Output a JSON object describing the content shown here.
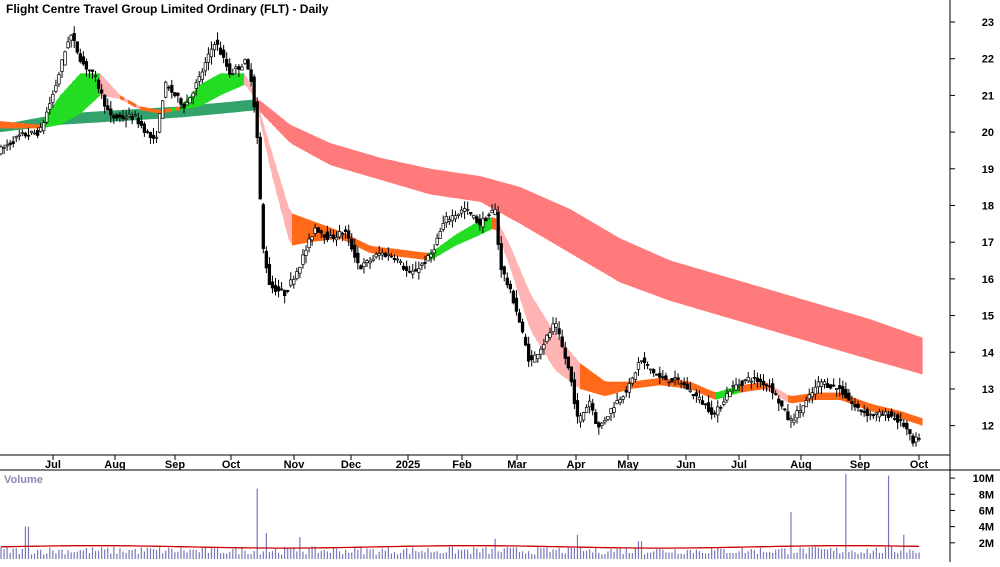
{
  "chart_data": {
    "type": "candlestick",
    "title": "Flight Centre Travel Group Limited Ordinary (FLT) - Daily",
    "price_axis": {
      "ticks": [
        12,
        13,
        14,
        15,
        16,
        17,
        18,
        19,
        20,
        21,
        22,
        23
      ],
      "ylim": [
        11.2,
        23.6
      ]
    },
    "x_axis": {
      "ticks": [
        "Jul",
        "Aug",
        "Sep",
        "Oct",
        "Nov",
        "Dec",
        "2025",
        "Feb",
        "Mar",
        "Apr",
        "May",
        "Jun",
        "Jul",
        "Aug",
        "Sep",
        "Oct"
      ]
    },
    "price_path": [
      {
        "t": 0,
        "v": 19.5
      },
      {
        "t": 20,
        "v": 19.9
      },
      {
        "t": 40,
        "v": 20.0
      },
      {
        "t": 55,
        "v": 21.2
      },
      {
        "t": 70,
        "v": 22.7
      },
      {
        "t": 82,
        "v": 21.9
      },
      {
        "t": 95,
        "v": 21.5
      },
      {
        "t": 110,
        "v": 20.4
      },
      {
        "t": 135,
        "v": 20.4
      },
      {
        "t": 155,
        "v": 19.7
      },
      {
        "t": 165,
        "v": 21.3
      },
      {
        "t": 185,
        "v": 20.7
      },
      {
        "t": 200,
        "v": 21.5
      },
      {
        "t": 215,
        "v": 22.5
      },
      {
        "t": 230,
        "v": 21.6
      },
      {
        "t": 245,
        "v": 21.9
      },
      {
        "t": 252,
        "v": 21.4
      },
      {
        "t": 258,
        "v": 19.6
      },
      {
        "t": 262,
        "v": 17.0
      },
      {
        "t": 270,
        "v": 15.8
      },
      {
        "t": 285,
        "v": 15.6
      },
      {
        "t": 300,
        "v": 16.4
      },
      {
        "t": 315,
        "v": 17.4
      },
      {
        "t": 330,
        "v": 17.1
      },
      {
        "t": 345,
        "v": 17.3
      },
      {
        "t": 360,
        "v": 16.3
      },
      {
        "t": 380,
        "v": 16.7
      },
      {
        "t": 395,
        "v": 16.6
      },
      {
        "t": 410,
        "v": 16.1
      },
      {
        "t": 430,
        "v": 16.6
      },
      {
        "t": 445,
        "v": 17.6
      },
      {
        "t": 465,
        "v": 17.9
      },
      {
        "t": 480,
        "v": 17.5
      },
      {
        "t": 495,
        "v": 17.9
      },
      {
        "t": 500,
        "v": 16.4
      },
      {
        "t": 515,
        "v": 15.3
      },
      {
        "t": 530,
        "v": 13.7
      },
      {
        "t": 545,
        "v": 14.3
      },
      {
        "t": 555,
        "v": 14.8
      },
      {
        "t": 570,
        "v": 13.4
      },
      {
        "t": 578,
        "v": 12.1
      },
      {
        "t": 590,
        "v": 12.7
      },
      {
        "t": 598,
        "v": 11.9
      },
      {
        "t": 615,
        "v": 12.6
      },
      {
        "t": 630,
        "v": 13.1
      },
      {
        "t": 640,
        "v": 13.8
      },
      {
        "t": 660,
        "v": 13.3
      },
      {
        "t": 680,
        "v": 13.2
      },
      {
        "t": 700,
        "v": 12.7
      },
      {
        "t": 715,
        "v": 12.3
      },
      {
        "t": 730,
        "v": 13.0
      },
      {
        "t": 750,
        "v": 13.3
      },
      {
        "t": 770,
        "v": 13.1
      },
      {
        "t": 790,
        "v": 12.1
      },
      {
        "t": 805,
        "v": 12.6
      },
      {
        "t": 820,
        "v": 13.2
      },
      {
        "t": 840,
        "v": 13.0
      },
      {
        "t": 855,
        "v": 12.5
      },
      {
        "t": 870,
        "v": 12.3
      },
      {
        "t": 890,
        "v": 12.3
      },
      {
        "t": 905,
        "v": 12.0
      },
      {
        "t": 913,
        "v": 11.5
      },
      {
        "t": 922,
        "v": 11.8
      }
    ],
    "fast_ma_ribbon": [
      {
        "t": 0,
        "a": 20.3,
        "b": 20.1
      },
      {
        "t": 40,
        "a": 20.2,
        "b": 20.1
      },
      {
        "t": 60,
        "a": 21.0,
        "b": 20.2
      },
      {
        "t": 80,
        "a": 21.6,
        "b": 20.5
      },
      {
        "t": 100,
        "a": 21.6,
        "b": 21.0
      },
      {
        "t": 120,
        "a": 21.0,
        "b": 20.9
      },
      {
        "t": 140,
        "a": 20.7,
        "b": 20.6
      },
      {
        "t": 160,
        "a": 20.6,
        "b": 20.5
      },
      {
        "t": 180,
        "a": 20.7,
        "b": 20.6
      },
      {
        "t": 200,
        "a": 21.3,
        "b": 20.7
      },
      {
        "t": 220,
        "a": 21.6,
        "b": 21.0
      },
      {
        "t": 245,
        "a": 21.6,
        "b": 21.3
      },
      {
        "t": 255,
        "a": 21.0,
        "b": 20.9
      },
      {
        "t": 270,
        "a": 19.6,
        "b": 19.0
      },
      {
        "t": 290,
        "a": 17.8,
        "b": 16.9
      },
      {
        "t": 310,
        "a": 17.6,
        "b": 17.0
      },
      {
        "t": 340,
        "a": 17.3,
        "b": 17.1
      },
      {
        "t": 370,
        "a": 16.9,
        "b": 16.7
      },
      {
        "t": 400,
        "a": 16.8,
        "b": 16.6
      },
      {
        "t": 430,
        "a": 16.7,
        "b": 16.5
      },
      {
        "t": 455,
        "a": 17.2,
        "b": 16.9
      },
      {
        "t": 480,
        "a": 17.6,
        "b": 17.2
      },
      {
        "t": 495,
        "a": 17.7,
        "b": 17.4
      },
      {
        "t": 510,
        "a": 16.9,
        "b": 16.3
      },
      {
        "t": 530,
        "a": 15.6,
        "b": 14.6
      },
      {
        "t": 555,
        "a": 14.5,
        "b": 13.5
      },
      {
        "t": 580,
        "a": 13.7,
        "b": 13.0
      },
      {
        "t": 605,
        "a": 13.2,
        "b": 12.8
      },
      {
        "t": 630,
        "a": 13.2,
        "b": 13.0
      },
      {
        "t": 660,
        "a": 13.3,
        "b": 13.1
      },
      {
        "t": 690,
        "a": 13.2,
        "b": 13.0
      },
      {
        "t": 715,
        "a": 12.9,
        "b": 12.7
      },
      {
        "t": 740,
        "a": 13.1,
        "b": 12.9
      },
      {
        "t": 765,
        "a": 13.2,
        "b": 13.0
      },
      {
        "t": 790,
        "a": 12.8,
        "b": 12.6
      },
      {
        "t": 815,
        "a": 12.9,
        "b": 12.7
      },
      {
        "t": 840,
        "a": 12.9,
        "b": 12.7
      },
      {
        "t": 870,
        "a": 12.6,
        "b": 12.4
      },
      {
        "t": 900,
        "a": 12.4,
        "b": 12.2
      },
      {
        "t": 922,
        "a": 12.2,
        "b": 12.0
      }
    ],
    "slow_ma_ribbon": [
      {
        "t": 0,
        "a": 20.2,
        "b": 20.0
      },
      {
        "t": 60,
        "a": 20.5,
        "b": 20.2
      },
      {
        "t": 120,
        "a": 20.6,
        "b": 20.3
      },
      {
        "t": 180,
        "a": 20.7,
        "b": 20.4
      },
      {
        "t": 220,
        "a": 20.8,
        "b": 20.5
      },
      {
        "t": 258,
        "a": 20.9,
        "b": 20.6
      },
      {
        "t": 290,
        "a": 20.2,
        "b": 19.7
      },
      {
        "t": 330,
        "a": 19.7,
        "b": 19.1
      },
      {
        "t": 380,
        "a": 19.3,
        "b": 18.7
      },
      {
        "t": 430,
        "a": 19.0,
        "b": 18.3
      },
      {
        "t": 480,
        "a": 18.8,
        "b": 18.1
      },
      {
        "t": 520,
        "a": 18.5,
        "b": 17.5
      },
      {
        "t": 570,
        "a": 17.9,
        "b": 16.7
      },
      {
        "t": 620,
        "a": 17.1,
        "b": 15.9
      },
      {
        "t": 670,
        "a": 16.5,
        "b": 15.4
      },
      {
        "t": 720,
        "a": 16.1,
        "b": 15.0
      },
      {
        "t": 770,
        "a": 15.7,
        "b": 14.6
      },
      {
        "t": 820,
        "a": 15.3,
        "b": 14.2
      },
      {
        "t": 870,
        "a": 14.9,
        "b": 13.8
      },
      {
        "t": 922,
        "a": 14.4,
        "b": 13.4
      }
    ],
    "volume": {
      "title": "Volume",
      "ticks": [
        "2M",
        "4M",
        "6M",
        "8M",
        "10M"
      ],
      "tick_values": [
        2,
        4,
        6,
        8,
        10
      ],
      "ylim": [
        0,
        11
      ],
      "unit": "M",
      "spikes": [
        {
          "t": 27,
          "v": 4.0
        },
        {
          "t": 258,
          "v": 8.7
        },
        {
          "t": 266,
          "v": 3.2
        },
        {
          "t": 496,
          "v": 2.5
        },
        {
          "t": 578,
          "v": 3.0
        },
        {
          "t": 791,
          "v": 5.8
        },
        {
          "t": 846,
          "v": 10.5
        },
        {
          "t": 889,
          "v": 10.3
        },
        {
          "t": 300,
          "v": 2.7
        },
        {
          "t": 640,
          "v": 2.2
        },
        {
          "t": 905,
          "v": 3.0
        }
      ],
      "baseline": 1.1,
      "avg_level": 1.5
    },
    "colors": {
      "candle": "#000000",
      "fast_up": "#22dd22",
      "fast_down": "#ff6a1a",
      "fast_fall": "#ffb3b3",
      "slow_up": "#33a36b",
      "slow_down": "#ff7a7a",
      "volume_bar": "#7777bb",
      "volume_ma": "#cc0000",
      "axis_text": "#000000",
      "volume_title": "#8a8ab8"
    }
  }
}
